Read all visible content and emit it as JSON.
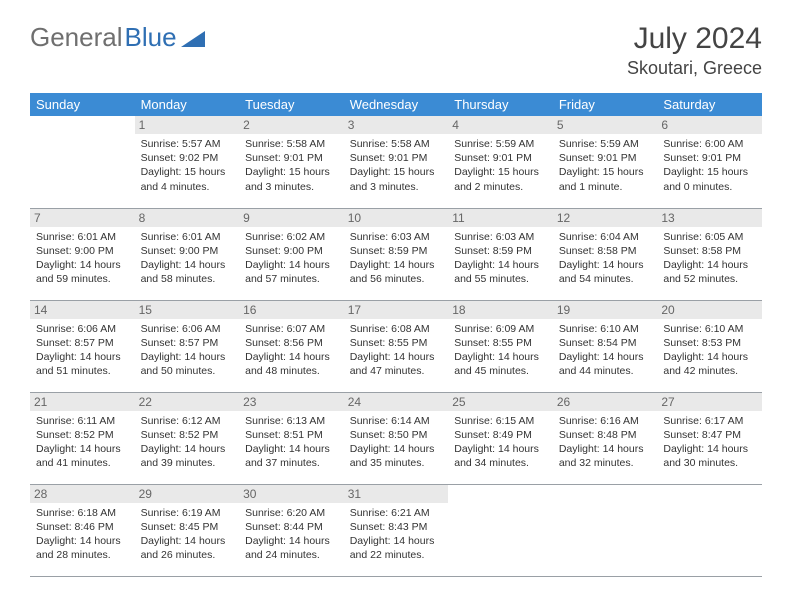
{
  "brand": {
    "part1": "General",
    "part2": "Blue"
  },
  "title": "July 2024",
  "location": "Skoutari, Greece",
  "colors": {
    "header_bg": "#3b8bd4",
    "header_text": "#ffffff",
    "daynum_bg": "#e9e9e9",
    "daynum_text": "#666666",
    "body_text": "#333333",
    "row_border": "#9aa0a6",
    "brand_gray": "#6f6f6f",
    "brand_blue": "#2f6fb3"
  },
  "weekdays": [
    "Sunday",
    "Monday",
    "Tuesday",
    "Wednesday",
    "Thursday",
    "Friday",
    "Saturday"
  ],
  "start_offset": 1,
  "days": [
    {
      "n": 1,
      "sr": "5:57 AM",
      "ss": "9:02 PM",
      "dl": "15 hours and 4 minutes."
    },
    {
      "n": 2,
      "sr": "5:58 AM",
      "ss": "9:01 PM",
      "dl": "15 hours and 3 minutes."
    },
    {
      "n": 3,
      "sr": "5:58 AM",
      "ss": "9:01 PM",
      "dl": "15 hours and 3 minutes."
    },
    {
      "n": 4,
      "sr": "5:59 AM",
      "ss": "9:01 PM",
      "dl": "15 hours and 2 minutes."
    },
    {
      "n": 5,
      "sr": "5:59 AM",
      "ss": "9:01 PM",
      "dl": "15 hours and 1 minute."
    },
    {
      "n": 6,
      "sr": "6:00 AM",
      "ss": "9:01 PM",
      "dl": "15 hours and 0 minutes."
    },
    {
      "n": 7,
      "sr": "6:01 AM",
      "ss": "9:00 PM",
      "dl": "14 hours and 59 minutes."
    },
    {
      "n": 8,
      "sr": "6:01 AM",
      "ss": "9:00 PM",
      "dl": "14 hours and 58 minutes."
    },
    {
      "n": 9,
      "sr": "6:02 AM",
      "ss": "9:00 PM",
      "dl": "14 hours and 57 minutes."
    },
    {
      "n": 10,
      "sr": "6:03 AM",
      "ss": "8:59 PM",
      "dl": "14 hours and 56 minutes."
    },
    {
      "n": 11,
      "sr": "6:03 AM",
      "ss": "8:59 PM",
      "dl": "14 hours and 55 minutes."
    },
    {
      "n": 12,
      "sr": "6:04 AM",
      "ss": "8:58 PM",
      "dl": "14 hours and 54 minutes."
    },
    {
      "n": 13,
      "sr": "6:05 AM",
      "ss": "8:58 PM",
      "dl": "14 hours and 52 minutes."
    },
    {
      "n": 14,
      "sr": "6:06 AM",
      "ss": "8:57 PM",
      "dl": "14 hours and 51 minutes."
    },
    {
      "n": 15,
      "sr": "6:06 AM",
      "ss": "8:57 PM",
      "dl": "14 hours and 50 minutes."
    },
    {
      "n": 16,
      "sr": "6:07 AM",
      "ss": "8:56 PM",
      "dl": "14 hours and 48 minutes."
    },
    {
      "n": 17,
      "sr": "6:08 AM",
      "ss": "8:55 PM",
      "dl": "14 hours and 47 minutes."
    },
    {
      "n": 18,
      "sr": "6:09 AM",
      "ss": "8:55 PM",
      "dl": "14 hours and 45 minutes."
    },
    {
      "n": 19,
      "sr": "6:10 AM",
      "ss": "8:54 PM",
      "dl": "14 hours and 44 minutes."
    },
    {
      "n": 20,
      "sr": "6:10 AM",
      "ss": "8:53 PM",
      "dl": "14 hours and 42 minutes."
    },
    {
      "n": 21,
      "sr": "6:11 AM",
      "ss": "8:52 PM",
      "dl": "14 hours and 41 minutes."
    },
    {
      "n": 22,
      "sr": "6:12 AM",
      "ss": "8:52 PM",
      "dl": "14 hours and 39 minutes."
    },
    {
      "n": 23,
      "sr": "6:13 AM",
      "ss": "8:51 PM",
      "dl": "14 hours and 37 minutes."
    },
    {
      "n": 24,
      "sr": "6:14 AM",
      "ss": "8:50 PM",
      "dl": "14 hours and 35 minutes."
    },
    {
      "n": 25,
      "sr": "6:15 AM",
      "ss": "8:49 PM",
      "dl": "14 hours and 34 minutes."
    },
    {
      "n": 26,
      "sr": "6:16 AM",
      "ss": "8:48 PM",
      "dl": "14 hours and 32 minutes."
    },
    {
      "n": 27,
      "sr": "6:17 AM",
      "ss": "8:47 PM",
      "dl": "14 hours and 30 minutes."
    },
    {
      "n": 28,
      "sr": "6:18 AM",
      "ss": "8:46 PM",
      "dl": "14 hours and 28 minutes."
    },
    {
      "n": 29,
      "sr": "6:19 AM",
      "ss": "8:45 PM",
      "dl": "14 hours and 26 minutes."
    },
    {
      "n": 30,
      "sr": "6:20 AM",
      "ss": "8:44 PM",
      "dl": "14 hours and 24 minutes."
    },
    {
      "n": 31,
      "sr": "6:21 AM",
      "ss": "8:43 PM",
      "dl": "14 hours and 22 minutes."
    }
  ],
  "labels": {
    "sunrise": "Sunrise:",
    "sunset": "Sunset:",
    "daylight": "Daylight:"
  }
}
